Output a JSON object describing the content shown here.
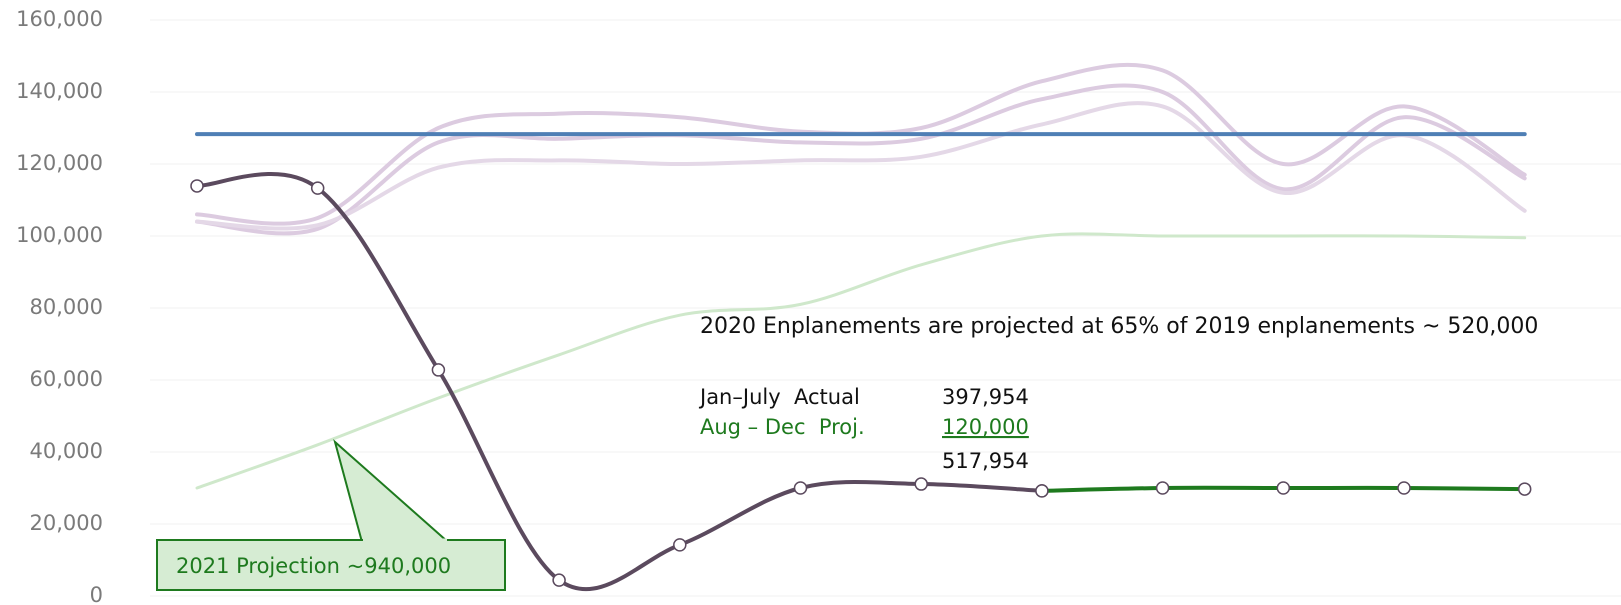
{
  "chart_data": {
    "type": "line",
    "categories": [
      null,
      null,
      null,
      null,
      null,
      null,
      null,
      null,
      null,
      null,
      null,
      null
    ],
    "series": [
      {
        "color": "#dccbe0",
        "width": 4,
        "values": [
          106000,
          105000,
          130000,
          134000,
          133000,
          129000,
          130000,
          143000,
          146000,
          120000,
          136000,
          117000
        ]
      },
      {
        "color": "#dccbe0",
        "width": 4,
        "values": [
          104000,
          102000,
          126000,
          127000,
          128000,
          126000,
          127000,
          138000,
          140000,
          113000,
          133000,
          116000
        ]
      },
      {
        "color": "#e4d8e7",
        "width": 4,
        "values": [
          104000,
          103000,
          119000,
          121000,
          120000,
          121000,
          122000,
          131000,
          136000,
          112000,
          128000,
          107000
        ]
      },
      {
        "color": "#cfe8cb",
        "width": 3,
        "values": [
          30000,
          42000,
          55000,
          67000,
          78000,
          81000,
          92000,
          100000,
          100000,
          100000,
          100000,
          99500
        ]
      },
      {
        "color": "#4f7fb5",
        "width": 4,
        "values": [
          128300,
          128300,
          128300,
          128300,
          128300,
          128300,
          128300,
          128300,
          128300,
          128300,
          128300,
          128300
        ]
      },
      {
        "color": "#1e7a1e",
        "width": 4,
        "markers": true,
        "values": [
          null,
          null,
          null,
          null,
          null,
          null,
          null,
          29200,
          30000,
          30000,
          30000,
          29700
        ]
      },
      {
        "color": "#5b4a5e",
        "width": 4,
        "markers": true,
        "values": [
          113900,
          113300,
          62800,
          4400,
          14200,
          30000,
          31100,
          29200,
          null,
          null,
          null,
          null
        ]
      }
    ],
    "ylim": [
      0,
      160000
    ],
    "yticks": [
      {
        "value": 0,
        "label": "0"
      },
      {
        "value": 20000,
        "label": "20,000"
      },
      {
        "value": 40000,
        "label": "40,000"
      },
      {
        "value": 60000,
        "label": "60,000"
      },
      {
        "value": 80000,
        "label": "80,000"
      },
      {
        "value": 100000,
        "label": "100,000"
      },
      {
        "value": 120000,
        "label": "120,000"
      },
      {
        "value": 140000,
        "label": "140,000"
      },
      {
        "value": 160000,
        "label": "160,000"
      }
    ],
    "grid": true,
    "annotations": {
      "note": "2020 Enplanements are projected at 65% of 2019 enplanements ~ 520,000",
      "rows": [
        {
          "label": "Jan–July  Actual",
          "value": "397,954"
        },
        {
          "label": "Aug – Dec  Proj.",
          "value": "120,000"
        },
        {
          "label": null,
          "value": "517,954"
        }
      ],
      "callout": "2021 Projection ~940,000"
    }
  }
}
